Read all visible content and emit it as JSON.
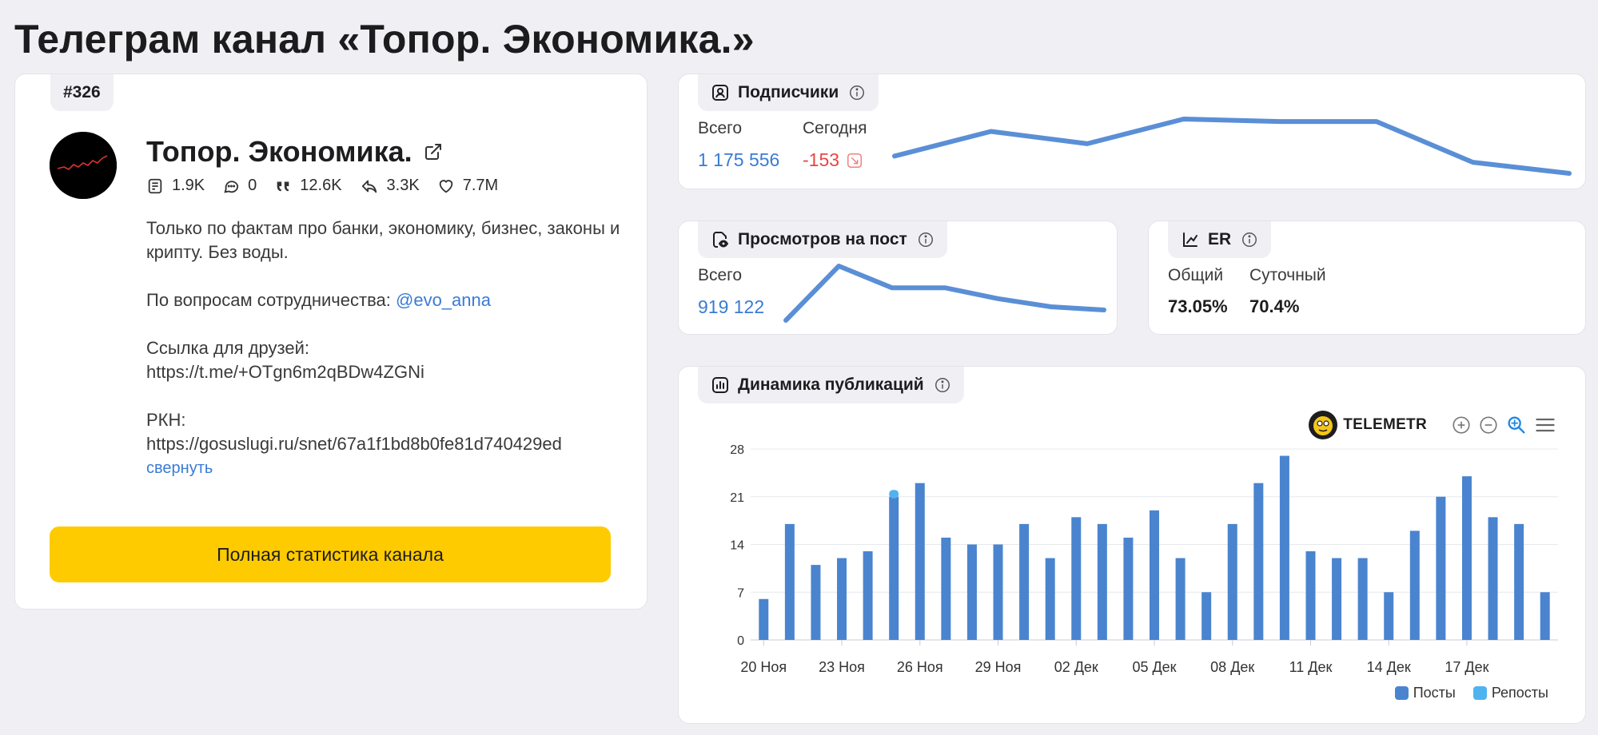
{
  "page": {
    "title": "Телеграм канал «Топор. Экономика.»"
  },
  "channel": {
    "rank": "#326",
    "name": "Топор. Экономика.",
    "stats": {
      "posts": "1.9K",
      "comments": "0",
      "quotes": "12.6K",
      "reposts": "3.3K",
      "reactions": "7.7M"
    },
    "description": {
      "line1": "Только по фактам про банки, экономику, бизнес, законы и крипту. Без воды.",
      "contact_prefix": "По вопросам сотрудничества:",
      "contact_handle": "@evo_anna",
      "friends_label": "Ссылка для друзей:",
      "friends_url": "https://t.me/+OTgn6m2qBDw4ZGNi",
      "rkn_label": "РКН:",
      "rkn_url": "https://gosuslugi.ru/snet/67a1f1bd8b0fe81d740429ed",
      "collapse": "свернуть"
    },
    "full_stats_button": "Полная статистика канала"
  },
  "subscribers": {
    "title": "Подписчики",
    "total_label": "Всего",
    "total_value": "1 175 556",
    "today_label": "Сегодня",
    "today_value": "-153",
    "trend_color": "#5a8fd6"
  },
  "views_per_post": {
    "title": "Просмотров на пост",
    "total_label": "Всего",
    "total_value": "919 122"
  },
  "er": {
    "title": "ER",
    "total_label": "Общий",
    "total_value": "73.05%",
    "daily_label": "Суточный",
    "daily_value": "70.4%"
  },
  "publications": {
    "title": "Динамика публикаций",
    "logo_text": "TELEMETR"
  },
  "chart_data": {
    "type": "bar",
    "categories": [
      "20 Ноя",
      "21 Ноя",
      "22 Ноя",
      "23 Ноя",
      "24 Ноя",
      "25 Ноя",
      "26 Ноя",
      "27 Ноя",
      "28 Ноя",
      "29 Ноя",
      "30 Ноя",
      "01 Дек",
      "02 Дек",
      "03 Дек",
      "04 Дек",
      "05 Дек",
      "06 Дек",
      "07 Дек",
      "08 Дек",
      "09 Дек",
      "10 Дек",
      "11 Дек",
      "12 Дек",
      "13 Дек",
      "14 Дек",
      "15 Дек",
      "16 Дек",
      "17 Дек",
      "18 Дек",
      "19 Дек",
      "20 Дек"
    ],
    "tick_labels": [
      "20 Ноя",
      "23 Ноя",
      "26 Ноя",
      "29 Ноя",
      "02 Дек",
      "05 Дек",
      "08 Дек",
      "11 Дек",
      "14 Дек",
      "17 Дек"
    ],
    "series": [
      {
        "name": "Посты",
        "color": "#4a84cf",
        "values": [
          6,
          17,
          11,
          12,
          13,
          21,
          23,
          15,
          14,
          14,
          17,
          12,
          18,
          17,
          15,
          19,
          12,
          7,
          17,
          23,
          27,
          13,
          12,
          12,
          7,
          16,
          21,
          24,
          18,
          17,
          7
        ]
      },
      {
        "name": "Репосты",
        "color": "#4fb3f0",
        "values": [
          0,
          0,
          0,
          0,
          0,
          1,
          0,
          0,
          0,
          0,
          0,
          0,
          0,
          0,
          0,
          0,
          0,
          0,
          0,
          0,
          0,
          0,
          0,
          0,
          0,
          0,
          0,
          0,
          0,
          0,
          0
        ]
      }
    ],
    "y_ticks": [
      0,
      7,
      14,
      21,
      28
    ],
    "ylim": [
      0,
      28
    ],
    "grid": true,
    "legend_position": "bottom-right",
    "stacked": true
  },
  "sparklines": {
    "subscribers": [
      1175700,
      1175900,
      1175800,
      1176000,
      1175980,
      1175980,
      1175650,
      1175560
    ],
    "views": [
      900000,
      1000000,
      960000,
      960000,
      940000,
      925000,
      919122
    ]
  }
}
